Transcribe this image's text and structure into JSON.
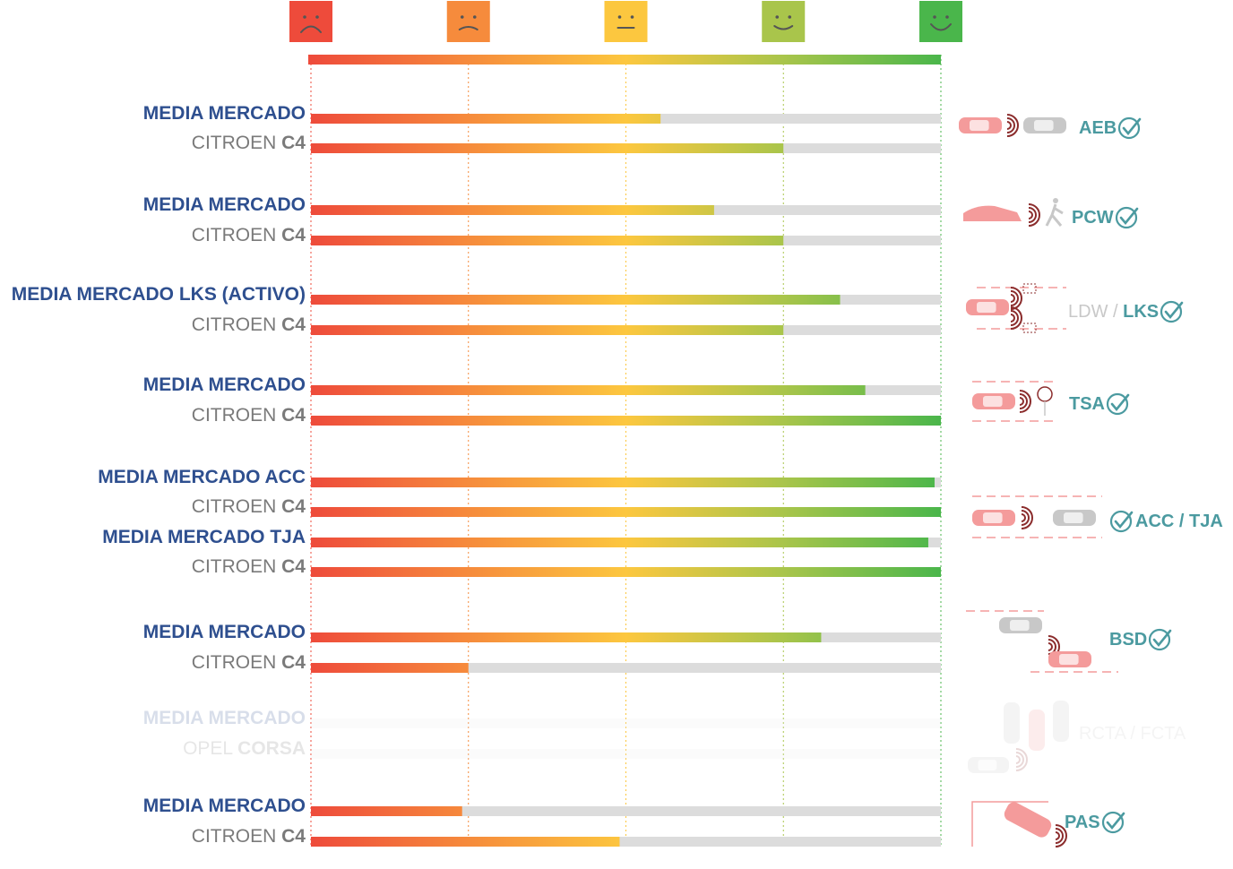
{
  "scale": {
    "faces": [
      {
        "name": "very-sad-face-icon",
        "color": "#ee4b3b"
      },
      {
        "name": "sad-face-icon",
        "color": "#f68b3c"
      },
      {
        "name": "neutral-face-icon",
        "color": "#fcc73f"
      },
      {
        "name": "happy-face-icon",
        "color": "#a9c54b"
      },
      {
        "name": "very-happy-face-icon",
        "color": "#4ab64b"
      }
    ],
    "gradient": [
      "#ee4b3b",
      "#f68b3c",
      "#fcc73f",
      "#a9c54b",
      "#4ab64b"
    ],
    "track_color": "#dcdcdc"
  },
  "chart_data": {
    "type": "bar",
    "orientation": "horizontal",
    "xlim": [
      0,
      100
    ],
    "groups": [
      {
        "feature": {
          "parts": [
            {
              "text": "AEB",
              "style": "bold"
            }
          ],
          "icon": "car-warning-car-icon",
          "check": true
        },
        "bars": [
          {
            "label": [
              {
                "text": "MEDIA MERCADO",
                "style": "bold"
              }
            ],
            "color": "blue",
            "value": 55.5
          },
          {
            "label": [
              {
                "text": "CITROEN ",
                "style": "normal"
              },
              {
                "text": "C4",
                "style": "bold"
              }
            ],
            "color": "gray",
            "value": 75
          }
        ]
      },
      {
        "feature": {
          "parts": [
            {
              "text": "PCW",
              "style": "bold"
            }
          ],
          "icon": "car-pedestrian-icon",
          "check": true
        },
        "bars": [
          {
            "label": [
              {
                "text": "MEDIA MERCADO",
                "style": "bold"
              }
            ],
            "color": "blue",
            "value": 64
          },
          {
            "label": [
              {
                "text": "CITROEN ",
                "style": "normal"
              },
              {
                "text": "C4",
                "style": "bold"
              }
            ],
            "color": "gray",
            "value": 75
          }
        ]
      },
      {
        "feature": {
          "parts": [
            {
              "text": "LDW / ",
              "style": "light"
            },
            {
              "text": "LKS",
              "style": "bold"
            }
          ],
          "icon": "lane-keeping-icon",
          "check": true
        },
        "bars": [
          {
            "label": [
              {
                "text": "MEDIA MERCADO LKS ",
                "style": "bold"
              },
              {
                "text": "(ACTIVO)",
                "style": "normal"
              }
            ],
            "color": "blue",
            "value": 84
          },
          {
            "label": [
              {
                "text": "CITROEN ",
                "style": "normal"
              },
              {
                "text": "C4",
                "style": "bold"
              }
            ],
            "color": "gray",
            "value": 75
          }
        ]
      },
      {
        "feature": {
          "parts": [
            {
              "text": "TSA",
              "style": "bold"
            }
          ],
          "icon": "speed-sign-icon",
          "check": true
        },
        "bars": [
          {
            "label": [
              {
                "text": "MEDIA MERCADO",
                "style": "bold"
              }
            ],
            "color": "blue",
            "value": 88
          },
          {
            "label": [
              {
                "text": "CITROEN ",
                "style": "normal"
              },
              {
                "text": "C4",
                "style": "bold"
              }
            ],
            "color": "gray",
            "value": 100
          }
        ]
      },
      {
        "feature": {
          "parts": [
            {
              "text": "ACC / TJA",
              "style": "bold"
            }
          ],
          "icon": "adaptive-cruise-icon",
          "check": true,
          "check_first": true
        },
        "bars": [
          {
            "label": [
              {
                "text": "MEDIA MERCADO ACC",
                "style": "bold"
              }
            ],
            "color": "blue",
            "value": 99
          },
          {
            "label": [
              {
                "text": "CITROEN ",
                "style": "normal"
              },
              {
                "text": "C4",
                "style": "bold"
              }
            ],
            "color": "gray",
            "value": 100
          },
          {
            "label": [
              {
                "text": "MEDIA MERCADO TJA",
                "style": "bold"
              }
            ],
            "color": "blue",
            "value": 98
          },
          {
            "label": [
              {
                "text": "CITROEN ",
                "style": "normal"
              },
              {
                "text": "C4",
                "style": "bold"
              }
            ],
            "color": "gray",
            "value": 100
          }
        ]
      },
      {
        "feature": {
          "parts": [
            {
              "text": "BSD",
              "style": "bold"
            }
          ],
          "icon": "blind-spot-icon",
          "check": true
        },
        "bars": [
          {
            "label": [
              {
                "text": "MEDIA MERCADO",
                "style": "bold"
              }
            ],
            "color": "blue",
            "value": 81
          },
          {
            "label": [
              {
                "text": "CITROEN ",
                "style": "normal"
              },
              {
                "text": "C4",
                "style": "bold"
              }
            ],
            "color": "gray",
            "value": 25
          }
        ]
      },
      {
        "faded": true,
        "feature": {
          "parts": [
            {
              "text": "RCTA / FCTA",
              "style": "light"
            }
          ],
          "icon": "cross-traffic-icon",
          "check": false
        },
        "bars": [
          {
            "label": [
              {
                "text": "MEDIA MERCADO",
                "style": "bold"
              }
            ],
            "color": "blue",
            "value": 0
          },
          {
            "label": [
              {
                "text": "OPEL ",
                "style": "normal"
              },
              {
                "text": "CORSA",
                "style": "bold"
              }
            ],
            "color": "gray",
            "value": 0
          }
        ]
      },
      {
        "feature": {
          "parts": [
            {
              "text": "PAS",
              "style": "bold"
            }
          ],
          "icon": "parking-assist-icon",
          "check": true
        },
        "bars": [
          {
            "label": [
              {
                "text": "MEDIA MERCADO",
                "style": "bold"
              }
            ],
            "color": "blue",
            "value": 24
          },
          {
            "label": [
              {
                "text": "CITROEN ",
                "style": "normal"
              },
              {
                "text": "C4",
                "style": "bold"
              }
            ],
            "color": "gray",
            "value": 49
          }
        ]
      }
    ]
  }
}
